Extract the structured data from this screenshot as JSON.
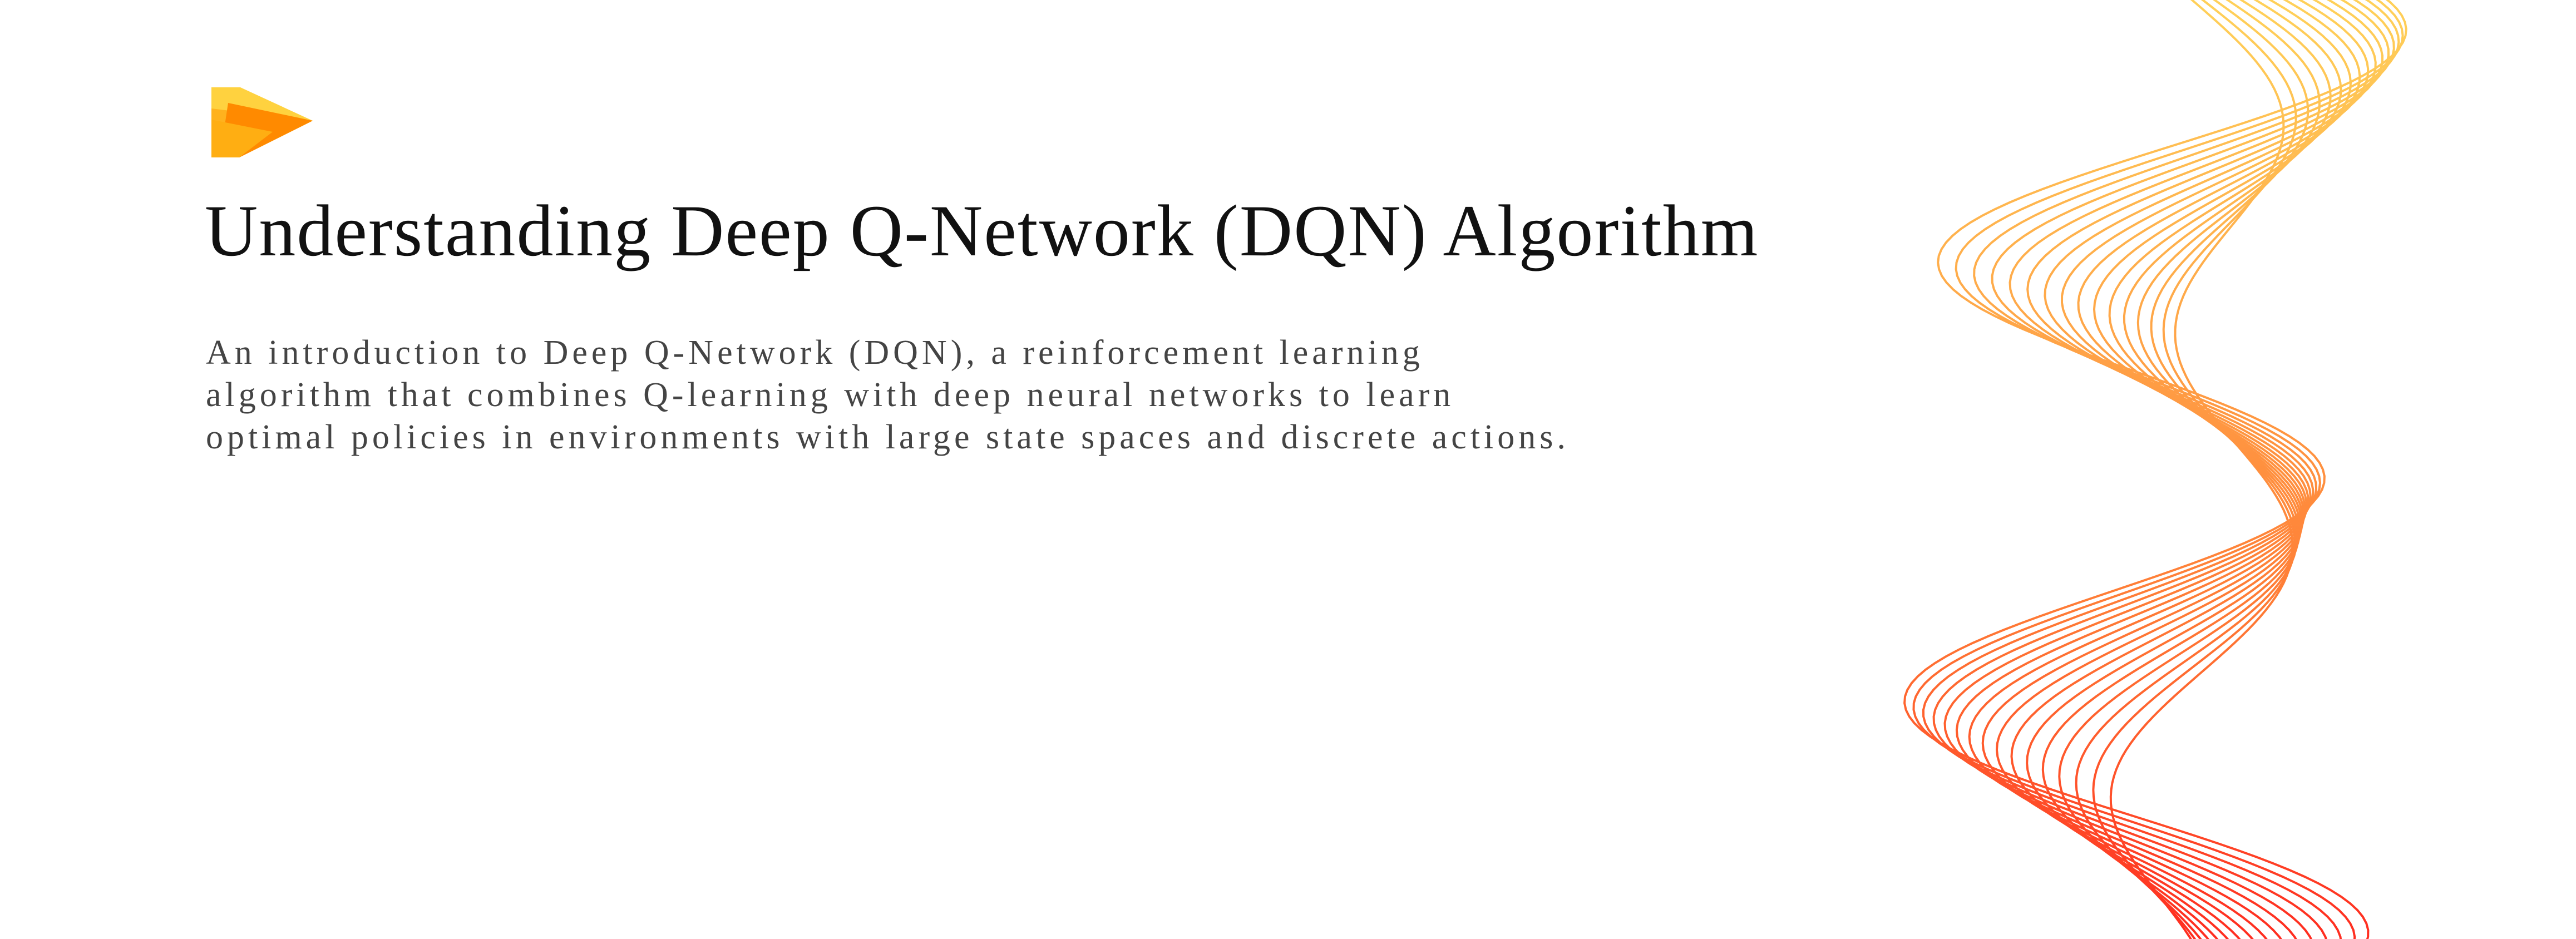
{
  "slide": {
    "title": "Understanding Deep Q-Network (DQN) Algorithm",
    "subtitle": "An introduction to Deep Q-Network (DQN), a reinforcement learning algorithm that combines Q-learning with deep neural networks to learn optimal policies in environments with large state spaces and discrete actions."
  },
  "logo": {
    "icon": "play-arrow-logo-icon",
    "colors": [
      "#FFD23F",
      "#FFA41B",
      "#FF7A00"
    ]
  },
  "decoration": {
    "icon": "wave-lines-decoration",
    "gradient": [
      "#FFD25A",
      "#FFA040",
      "#FF6A2E",
      "#FF2A1F"
    ]
  }
}
